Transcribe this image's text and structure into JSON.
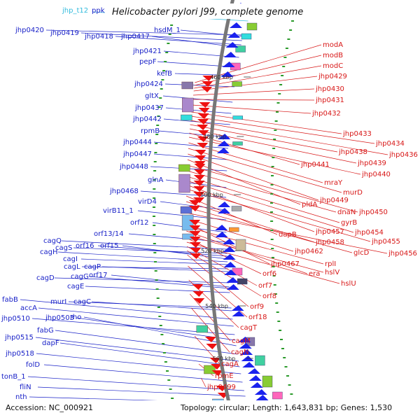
{
  "title": "Helicobacter pylori J99, complete genome",
  "footer": {
    "accession": "Accession: NC_000921",
    "topology": "Topology: circular; Length: 1,643,831 bp; Genes: 1,530"
  },
  "colors": {
    "forward_label": "#1a22c8",
    "reverse_label": "#d81818",
    "forward_gene": "#1a22ee",
    "reverse_gene": "#ee1111",
    "backbone": "#777777",
    "gc_marks": "#2a9a2a",
    "trna": "#33bbdd"
  },
  "kbp_ticks": [
    {
      "label": "460 kbp",
      "k": 460
    },
    {
      "label": "480 kbp",
      "k": 480
    },
    {
      "label": "500 kbp",
      "k": 500
    },
    {
      "label": "520 kbp",
      "k": 520
    },
    {
      "label": "540 kbp",
      "k": 540
    },
    {
      "label": "560 kbp",
      "k": 560
    }
  ],
  "trna_labels": [
    "jhp_t12"
  ],
  "forward_labels": [
    "ppk",
    "jhp0420",
    "jhp0419",
    "jhp0418",
    "jhp0417",
    "hsdM_1",
    "jhp0421",
    "pepF",
    "kefB",
    "jhp0424",
    "gltX",
    "jhp0437",
    "jhp0442",
    "rpmB",
    "jhp0444",
    "jhp0447",
    "jhp0448",
    "glnA",
    "jhp0468",
    "virD4",
    "virB11_1",
    "orf12",
    "orf13/14",
    "cagQ",
    "cagS",
    "orf16",
    "orf15",
    "cagH",
    "cagI",
    "cagL",
    "cagP",
    "cagD",
    "cagG",
    "orf17",
    "cagE",
    "murI",
    "cagC",
    "fabB",
    "accA",
    "jhp0510",
    "jhp0503",
    "rho",
    "fabG",
    "jhp0515",
    "dapF",
    "jhp0518",
    "folD",
    "tonB_1",
    "fliN",
    "nth"
  ],
  "reverse_labels": [
    "modA",
    "modB",
    "modC",
    "jhp0429",
    "jhp0430",
    "jhp0431",
    "jhp0432",
    "jhp0433",
    "jhp0434",
    "jhp0436",
    "jhp0438",
    "jhp0439",
    "jhp0441",
    "jhp0440",
    "mraY",
    "murD",
    "jhp0449",
    "pldA",
    "jhp0450",
    "dnaN",
    "gyrB",
    "jhp0454",
    "jhp0457",
    "jhp0455",
    "dapB",
    "jhp0458",
    "glcD",
    "jhp0456",
    "jhp0462",
    "jhp0467",
    "rplI",
    "era",
    "hslV",
    "orf6",
    "hslU",
    "orf7",
    "orf8",
    "orf9",
    "orf18",
    "cagT",
    "cagM",
    "cagN",
    "cagA",
    "rpmE",
    "jhp0499"
  ]
}
